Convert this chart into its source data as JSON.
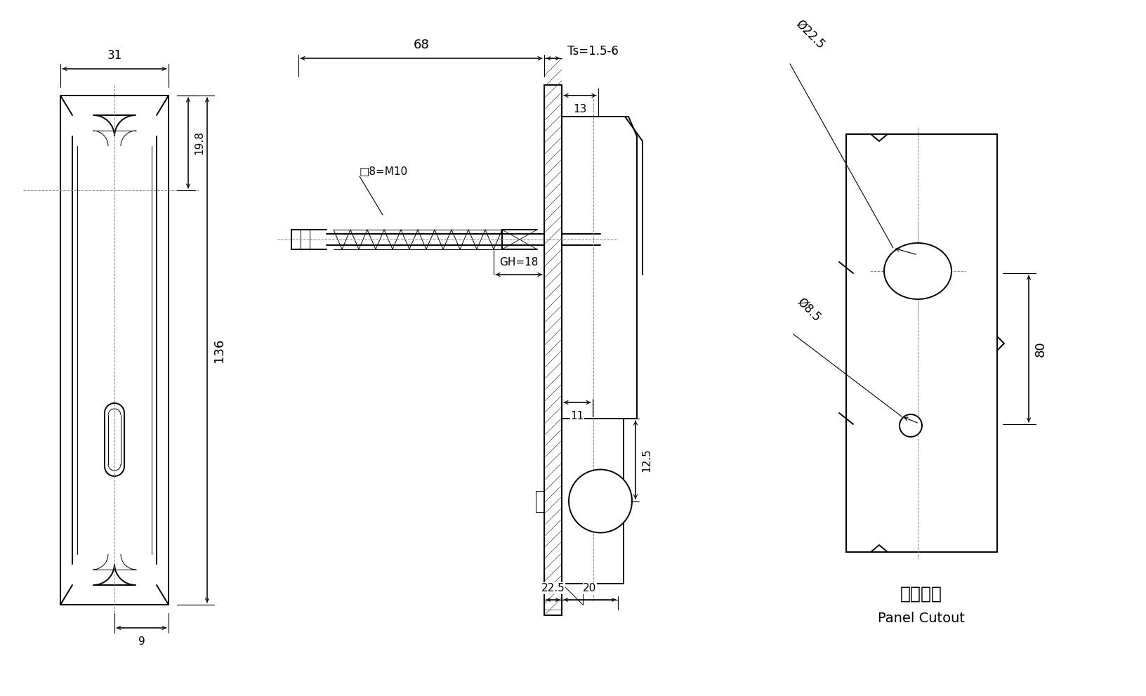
{
  "bg_color": "#ffffff",
  "line_color": "#000000",
  "dims": {
    "left_width": "31",
    "left_height": "136",
    "left_bottom": "9",
    "left_top": "19.8",
    "mid_68": "68",
    "mid_thread": "□8=M10",
    "mid_ts": "Ts=1.5-6",
    "mid_13": "13",
    "mid_gh": "GH=18",
    "mid_11": "11",
    "mid_12_5": "12.5",
    "mid_22_5": "22.5",
    "mid_20": "20",
    "right_d22": "Ø22.5",
    "right_d8": "Ø8.5",
    "right_80": "80",
    "title_cn": "开孔尺寸",
    "title_en": "Panel Cutout"
  }
}
